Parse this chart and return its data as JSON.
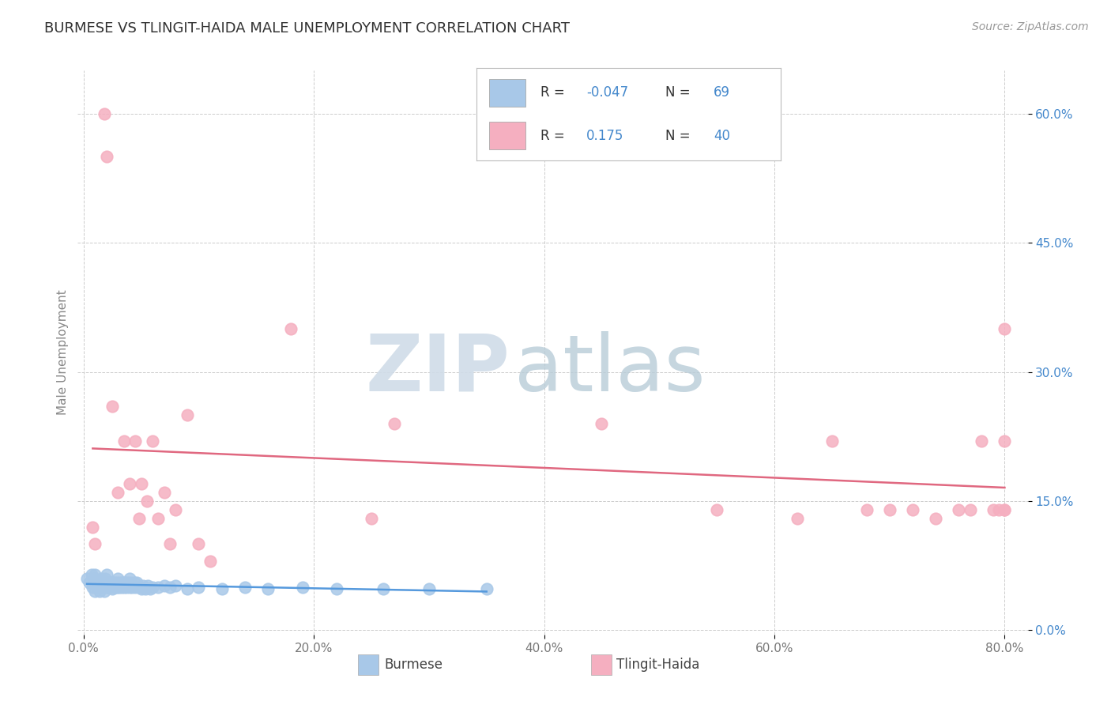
{
  "title": "BURMESE VS TLINGIT-HAIDA MALE UNEMPLOYMENT CORRELATION CHART",
  "source": "Source: ZipAtlas.com",
  "ylabel": "Male Unemployment",
  "xlim": [
    -0.005,
    0.82
  ],
  "ylim": [
    -0.005,
    0.65
  ],
  "yticks": [
    0.0,
    0.15,
    0.3,
    0.45,
    0.6
  ],
  "xticks": [
    0.0,
    0.2,
    0.4,
    0.6,
    0.8
  ],
  "burmese_R": "-0.047",
  "burmese_N": "69",
  "tlingit_R": "0.175",
  "tlingit_N": "40",
  "burmese_color": "#a8c8e8",
  "tlingit_color": "#f5afc0",
  "burmese_line_color": "#5599dd",
  "tlingit_line_color": "#e06880",
  "legend_text_color": "#333333",
  "legend_value_color": "#4488cc",
  "bg_color": "#ffffff",
  "grid_color": "#cccccc",
  "title_color": "#333333",
  "source_color": "#999999",
  "ylabel_color": "#888888",
  "tick_color_y": "#4488cc",
  "tick_color_x": "#777777",
  "watermark_zip_color": "#d0dce8",
  "watermark_atlas_color": "#b8ccd8",
  "burmese_x": [
    0.003,
    0.005,
    0.007,
    0.008,
    0.009,
    0.01,
    0.01,
    0.01,
    0.012,
    0.013,
    0.014,
    0.015,
    0.015,
    0.016,
    0.017,
    0.018,
    0.018,
    0.019,
    0.02,
    0.02,
    0.02,
    0.021,
    0.022,
    0.023,
    0.024,
    0.025,
    0.025,
    0.026,
    0.027,
    0.028,
    0.029,
    0.03,
    0.03,
    0.031,
    0.032,
    0.033,
    0.034,
    0.035,
    0.036,
    0.037,
    0.038,
    0.04,
    0.04,
    0.041,
    0.042,
    0.044,
    0.045,
    0.046,
    0.048,
    0.05,
    0.052,
    0.054,
    0.056,
    0.058,
    0.06,
    0.065,
    0.07,
    0.075,
    0.08,
    0.09,
    0.1,
    0.12,
    0.14,
    0.16,
    0.19,
    0.22,
    0.26,
    0.3,
    0.35
  ],
  "burmese_y": [
    0.06,
    0.055,
    0.065,
    0.05,
    0.06,
    0.045,
    0.055,
    0.065,
    0.05,
    0.055,
    0.045,
    0.05,
    0.06,
    0.055,
    0.05,
    0.045,
    0.055,
    0.06,
    0.05,
    0.055,
    0.065,
    0.05,
    0.055,
    0.05,
    0.055,
    0.048,
    0.055,
    0.05,
    0.055,
    0.05,
    0.055,
    0.05,
    0.06,
    0.05,
    0.055,
    0.05,
    0.055,
    0.05,
    0.055,
    0.05,
    0.055,
    0.05,
    0.06,
    0.055,
    0.05,
    0.055,
    0.05,
    0.055,
    0.05,
    0.048,
    0.052,
    0.048,
    0.052,
    0.048,
    0.05,
    0.05,
    0.052,
    0.05,
    0.052,
    0.048,
    0.05,
    0.048,
    0.05,
    0.048,
    0.05,
    0.048,
    0.048,
    0.048,
    0.048
  ],
  "tlingit_x": [
    0.008,
    0.01,
    0.018,
    0.02,
    0.025,
    0.03,
    0.035,
    0.04,
    0.045,
    0.048,
    0.05,
    0.055,
    0.06,
    0.065,
    0.07,
    0.075,
    0.08,
    0.09,
    0.1,
    0.11,
    0.18,
    0.25,
    0.27,
    0.45,
    0.55,
    0.62,
    0.65,
    0.68,
    0.7,
    0.72,
    0.74,
    0.76,
    0.77,
    0.78,
    0.79,
    0.795,
    0.8,
    0.8,
    0.8,
    0.8
  ],
  "tlingit_y": [
    0.12,
    0.1,
    0.6,
    0.55,
    0.26,
    0.16,
    0.22,
    0.17,
    0.22,
    0.13,
    0.17,
    0.15,
    0.22,
    0.13,
    0.16,
    0.1,
    0.14,
    0.25,
    0.1,
    0.08,
    0.35,
    0.13,
    0.24,
    0.24,
    0.14,
    0.13,
    0.22,
    0.14,
    0.14,
    0.14,
    0.13,
    0.14,
    0.14,
    0.22,
    0.14,
    0.14,
    0.14,
    0.22,
    0.35,
    0.14
  ]
}
